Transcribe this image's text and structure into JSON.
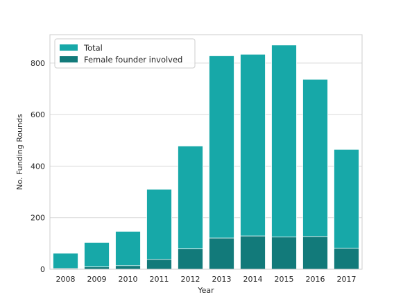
{
  "chart_data": {
    "type": "bar",
    "title": "",
    "xlabel": "Year",
    "ylabel": "No. Funding Rounds",
    "categories": [
      "2008",
      "2009",
      "2010",
      "2011",
      "2012",
      "2013",
      "2014",
      "2015",
      "2016",
      "2017"
    ],
    "series": [
      {
        "name": "Total",
        "color": "#17a8a8",
        "values": [
          62,
          104,
          147,
          310,
          478,
          828,
          834,
          870,
          737,
          465
        ]
      },
      {
        "name": "Female founder involved",
        "color": "#127a7a",
        "values": [
          4,
          9,
          14,
          38,
          79,
          121,
          129,
          125,
          127,
          81
        ]
      }
    ],
    "ylim": [
      0,
      910
    ],
    "yticks": [
      "0",
      "200",
      "400",
      "600",
      "800"
    ],
    "grid": true,
    "legend_position": "top-left",
    "bar_mode": "overlay"
  }
}
